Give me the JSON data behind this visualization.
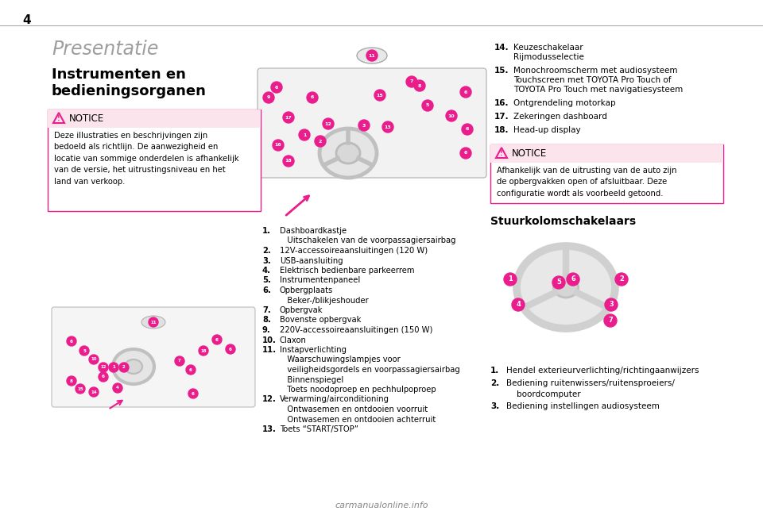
{
  "page_number": "4",
  "bg_color": "#ffffff",
  "title_color": "#9e9e9e",
  "title_text": "Presentatie",
  "notice_bg_color": "#fce4ec",
  "notice_border_color": "#e91e8c",
  "notice_title": "NOTICE",
  "notice_text_1": "Deze illustraties en beschrijvingen zijn\nbedoeld als richtlijn. De aanwezigheid en\nlocatie van sommige onderdelen is afhankelijk\nvan de versie, het uitrustingsniveau en het\nland van verkoop.",
  "notice_text_2": "Afhankelijk van de uitrusting van de auto zijn\nde opbergvakken open of afsluitbaar. Deze\nconfiguratie wordt als voorbeeld getoond.",
  "list_items_center": [
    [
      "1.",
      "Dashboardkastje"
    ],
    [
      "",
      "   Uitschakelen van de voorpassagiersairbag"
    ],
    [
      "2.",
      "12V-accessoireaansluitingen (120 W)"
    ],
    [
      "3.",
      "USB-aansluiting"
    ],
    [
      "4.",
      "Elektrisch bedienbare parkeerrem"
    ],
    [
      "5.",
      "Instrumentenpaneel"
    ],
    [
      "6.",
      "Opbergplaats"
    ],
    [
      "",
      "   Beker-/blikjeshouder"
    ],
    [
      "7.",
      "Opbergvak"
    ],
    [
      "8.",
      "Bovenste opbergvak"
    ],
    [
      "9.",
      "220V-accessoireaansluitingen (150 W)"
    ],
    [
      "10.",
      "Claxon"
    ],
    [
      "11.",
      "Instapverlichting"
    ],
    [
      "",
      "   Waarschuwingslampjes voor"
    ],
    [
      "",
      "   veiligheidsgordels en voorpassagiersairbag"
    ],
    [
      "",
      "   Binnenspiegel"
    ],
    [
      "",
      "   Toets noodoproep en pechhulpoproep"
    ],
    [
      "12.",
      "Verwarming/airconditioning"
    ],
    [
      "",
      "   Ontwasemen en ontdooien voorruit"
    ],
    [
      "",
      "   Ontwasemen en ontdooien achterruit"
    ],
    [
      "13.",
      "Toets “START/STOP”"
    ]
  ],
  "list_items_right": [
    [
      "14.",
      [
        "Keuzeschakelaar",
        "Rijmodusselectie"
      ]
    ],
    [
      "15.",
      [
        "Monochroomscherm met audiosysteem",
        "Touchscreen met TOYOTA Pro Touch of",
        "TOYOTA Pro Touch met navigatiesysteem"
      ]
    ],
    [
      "16.",
      [
        "Ontgrendeling motorkap"
      ]
    ],
    [
      "17.",
      [
        "Zekeringen dashboard"
      ]
    ],
    [
      "18.",
      [
        "Head-up display"
      ]
    ]
  ],
  "steering_title": "Stuurkolomschakelaars",
  "steering_list": [
    [
      "1.",
      "Hendel exterieurverlichting/richtingaanwijzers"
    ],
    [
      "2.",
      "Bediening ruitenwissers/ruitensproeiers/\n    boordcomputer"
    ],
    [
      "3.",
      "Bediening instellingen audiosysteem"
    ]
  ],
  "watermark_text": "carmanualonline.info",
  "pink_color": "#e91e8c",
  "text_color": "#000000"
}
